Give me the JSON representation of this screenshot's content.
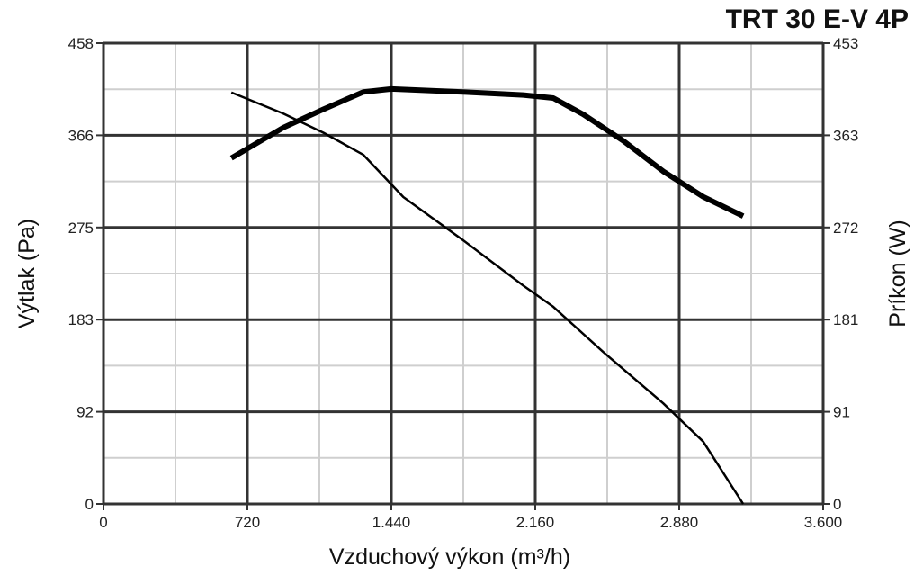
{
  "chart_data": {
    "type": "line",
    "title": "TRT 30 E-V 4P",
    "xlabel": "Vzduchový výkon (m³/h)",
    "ylabel_left": "Výtlak (Pa)",
    "ylabel_right": "Príkon (W)",
    "xlim": [
      0,
      3600
    ],
    "ylim_left": [
      0,
      458
    ],
    "ylim_right": [
      0,
      453
    ],
    "x_ticks": [
      "0",
      "720",
      "1.440",
      "2.160",
      "2.880",
      "3.600"
    ],
    "y_left_ticks": [
      "0",
      "92",
      "183",
      "275",
      "366",
      "458"
    ],
    "y_right_ticks": [
      "0",
      "91",
      "181",
      "272",
      "363",
      "453"
    ],
    "grid": true,
    "series": [
      {
        "axis": "left",
        "style": "thin",
        "points": [
          [
            640,
            409
          ],
          [
            900,
            388
          ],
          [
            1100,
            369
          ],
          [
            1300,
            347
          ],
          [
            1500,
            305
          ],
          [
            1800,
            262
          ],
          [
            2100,
            217
          ],
          [
            2250,
            196
          ],
          [
            2500,
            151
          ],
          [
            2800,
            100
          ],
          [
            3000,
            62
          ],
          [
            3200,
            0
          ]
        ]
      },
      {
        "axis": "right",
        "style": "thick",
        "points": [
          [
            640,
            340
          ],
          [
            900,
            370
          ],
          [
            1100,
            388
          ],
          [
            1300,
            405
          ],
          [
            1440,
            408
          ],
          [
            1800,
            405
          ],
          [
            2100,
            402
          ],
          [
            2250,
            399
          ],
          [
            2400,
            383
          ],
          [
            2600,
            357
          ],
          [
            2800,
            327
          ],
          [
            3000,
            302
          ],
          [
            3200,
            283
          ]
        ]
      }
    ]
  }
}
